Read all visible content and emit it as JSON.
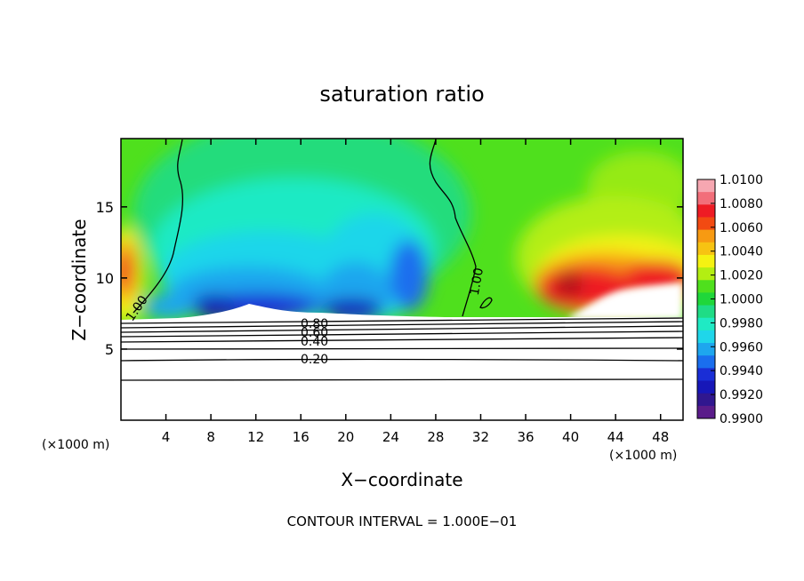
{
  "chart_data": {
    "type": "heatmap",
    "title": "saturation ratio",
    "xlabel": "X−coordinate",
    "ylabel": "Z−coordinate",
    "x_units": "(×1000 m)",
    "footer": "CONTOUR INTERVAL = 1.000E−01",
    "xlim": [
      0,
      50
    ],
    "ylim": [
      0,
      19.8
    ],
    "x_ticks": [
      4,
      8,
      12,
      16,
      20,
      24,
      28,
      32,
      36,
      40,
      44,
      48
    ],
    "y_ticks": [
      5,
      10,
      15
    ],
    "colorbar": {
      "range": [
        0.99,
        1.01
      ],
      "ticks": [
        "1.0100",
        "1.0080",
        "1.0060",
        "1.0040",
        "1.0020",
        "1.0000",
        "0.9980",
        "0.9960",
        "0.9940",
        "0.9920",
        "0.9900"
      ],
      "colors": [
        "#f6a7b1",
        "#f26e7a",
        "#ee1b24",
        "#f24a12",
        "#f79a12",
        "#f7c312",
        "#f5f212",
        "#b3ee12",
        "#4fe01d",
        "#1fd73a",
        "#1fdc86",
        "#1feac4",
        "#1fd6ea",
        "#1ea6ee",
        "#1a6eee",
        "#1a2ed6",
        "#1717b8",
        "#30178f",
        "#5a1c8a"
      ]
    },
    "contours": [
      {
        "label": "1.00"
      },
      {
        "label": "1.00"
      },
      {
        "label": "0.80"
      },
      {
        "label": "0.60"
      },
      {
        "label": "0.40"
      },
      {
        "label": "0.20"
      }
    ]
  }
}
